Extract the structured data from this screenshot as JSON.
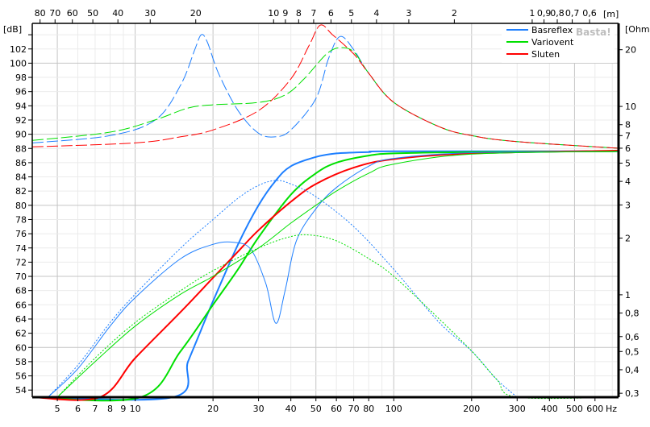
{
  "chart_data": {
    "type": "line",
    "title": "",
    "xlabel": "Hz",
    "ylabel": "[dB]",
    "y2label": "[Ohm]",
    "x2label": "[m]",
    "watermark": "Basta!",
    "xlim": [
      4,
      740
    ],
    "ylim": [
      53,
      105.6
    ],
    "y2lim": [
      0.286,
      27.6
    ],
    "xscale": "log",
    "grid": true,
    "legend_position": "top-right",
    "colors": {
      "Basreflex": "#1e7fff",
      "Variovent": "#00e000",
      "Sluten": "#ff0000"
    },
    "x_ticks": [
      "5",
      "6",
      "7",
      "8",
      "9",
      "10",
      "20",
      "30",
      "40",
      "50",
      "60",
      "70",
      "80",
      "100",
      "200",
      "300",
      "400",
      "500",
      "600"
    ],
    "x_tick_values": [
      5,
      6,
      7,
      8,
      9,
      10,
      20,
      30,
      40,
      50,
      60,
      70,
      80,
      100,
      200,
      300,
      400,
      500,
      600
    ],
    "x2_ticks": [
      "80",
      "70",
      "60",
      "50",
      "40",
      "30",
      "20",
      "10",
      "9",
      "8",
      "7",
      "6",
      "5",
      "4",
      "3",
      "2",
      "1",
      "0,9",
      "0,8",
      "0,7",
      "0,6"
    ],
    "x2_tick_values": [
      80,
      70,
      60,
      50,
      40,
      30,
      20,
      10,
      9,
      8,
      7,
      6,
      5,
      4,
      3,
      2,
      1,
      0.9,
      0.8,
      0.7,
      0.6
    ],
    "y_ticks": [
      54,
      56,
      58,
      60,
      62,
      64,
      66,
      68,
      70,
      72,
      74,
      76,
      78,
      80,
      82,
      84,
      86,
      88,
      90,
      92,
      94,
      96,
      98,
      100,
      102
    ],
    "y2_ticks": [
      "20",
      "10",
      "8",
      "7",
      "6",
      "5",
      "4",
      "3",
      "2",
      "1",
      "0,8",
      "0,6",
      "0,5",
      "0,4",
      "0,3"
    ],
    "y2_tick_values": [
      20,
      10,
      8,
      7,
      6,
      5,
      4,
      3,
      2,
      1,
      0.8,
      0.6,
      0.5,
      0.4,
      0.3
    ],
    "legend": [
      "Basreflex",
      "Variovent",
      "Sluten"
    ],
    "series": [
      {
        "name": "Basreflex",
        "kind": "spl",
        "axis": "dB",
        "style": "thick",
        "points": [
          [
            4,
            53
          ],
          [
            14,
            53
          ],
          [
            16,
            58
          ],
          [
            18,
            62.5
          ],
          [
            20,
            66.5
          ],
          [
            25,
            74.5
          ],
          [
            30,
            80
          ],
          [
            35,
            83.5
          ],
          [
            40,
            85.5
          ],
          [
            50,
            86.8
          ],
          [
            60,
            87.3
          ],
          [
            80,
            87.5
          ],
          [
            100,
            87.6
          ],
          [
            740,
            87.6
          ]
        ]
      },
      {
        "name": "Variovent",
        "kind": "spl",
        "axis": "dB",
        "style": "thick",
        "points": [
          [
            4,
            53
          ],
          [
            10.5,
            53
          ],
          [
            15,
            59.5
          ],
          [
            20,
            66
          ],
          [
            25,
            71
          ],
          [
            30,
            75.5
          ],
          [
            40,
            81.5
          ],
          [
            50,
            84.5
          ],
          [
            60,
            86
          ],
          [
            80,
            87
          ],
          [
            100,
            87.3
          ],
          [
            200,
            87.5
          ],
          [
            740,
            87.6
          ]
        ]
      },
      {
        "name": "Sluten",
        "kind": "spl",
        "axis": "dB",
        "style": "thick",
        "points": [
          [
            4,
            53
          ],
          [
            7.3,
            53
          ],
          [
            10,
            58.5
          ],
          [
            15,
            65
          ],
          [
            20,
            69.8
          ],
          [
            25,
            73.5
          ],
          [
            30,
            76.5
          ],
          [
            40,
            80.5
          ],
          [
            50,
            83
          ],
          [
            70,
            85.3
          ],
          [
            100,
            86.5
          ],
          [
            200,
            87.3
          ],
          [
            740,
            87.7
          ]
        ]
      },
      {
        "name": "Basreflex",
        "kind": "spl-thin",
        "axis": "dB",
        "style": "thin",
        "points": [
          [
            4.6,
            53
          ],
          [
            6,
            57
          ],
          [
            8,
            63
          ],
          [
            10,
            67
          ],
          [
            15,
            72.5
          ],
          [
            20,
            74.5
          ],
          [
            24,
            74.8
          ],
          [
            28,
            73.8
          ],
          [
            32,
            69
          ],
          [
            35,
            63.4
          ],
          [
            38,
            68
          ],
          [
            42,
            75
          ],
          [
            50,
            79.5
          ],
          [
            60,
            82.5
          ],
          [
            80,
            85.5
          ],
          [
            100,
            86.6
          ],
          [
            200,
            87.4
          ],
          [
            740,
            87.6
          ]
        ]
      },
      {
        "name": "Variovent",
        "kind": "spl-thin",
        "axis": "dB",
        "style": "thin",
        "points": [
          [
            5,
            53
          ],
          [
            7,
            58
          ],
          [
            10,
            63
          ],
          [
            15,
            67.5
          ],
          [
            20,
            70
          ],
          [
            30,
            74
          ],
          [
            40,
            77.5
          ],
          [
            50,
            80
          ],
          [
            60,
            82
          ],
          [
            80,
            84.5
          ],
          [
            100,
            85.8
          ],
          [
            200,
            87.2
          ],
          [
            740,
            87.6
          ]
        ]
      },
      {
        "name": "Basreflex",
        "kind": "driver",
        "axis": "dB",
        "style": "dotted",
        "points": [
          [
            4.6,
            53
          ],
          [
            6,
            57.5
          ],
          [
            8,
            63.5
          ],
          [
            10,
            67.5
          ],
          [
            15,
            74
          ],
          [
            20,
            78
          ],
          [
            25,
            81
          ],
          [
            30,
            82.8
          ],
          [
            35,
            83.5
          ],
          [
            40,
            83
          ],
          [
            50,
            81.2
          ],
          [
            70,
            77
          ],
          [
            100,
            71
          ],
          [
            150,
            63.5
          ],
          [
            200,
            59.5
          ],
          [
            250,
            55.5
          ],
          [
            300,
            53
          ]
        ]
      },
      {
        "name": "Variovent",
        "kind": "driver",
        "axis": "dB",
        "style": "dotted",
        "points": [
          [
            5,
            53
          ],
          [
            7,
            58.5
          ],
          [
            10,
            63.5
          ],
          [
            15,
            68
          ],
          [
            20,
            70.8
          ],
          [
            30,
            74
          ],
          [
            40,
            75.6
          ],
          [
            48,
            75.8
          ],
          [
            60,
            75
          ],
          [
            80,
            72.5
          ],
          [
            100,
            70
          ],
          [
            150,
            64
          ],
          [
            200,
            59.5
          ],
          [
            250,
            55.5
          ],
          [
            300,
            53
          ],
          [
            740,
            53
          ]
        ]
      },
      {
        "name": "Basreflex",
        "kind": "impedance",
        "axis": "Ohm",
        "style": "dashed",
        "points": [
          [
            4,
            6.4
          ],
          [
            8,
            7
          ],
          [
            12,
            8.5
          ],
          [
            15,
            13
          ],
          [
            17,
            20
          ],
          [
            18,
            24
          ],
          [
            19,
            22
          ],
          [
            21,
            15
          ],
          [
            25,
            9.5
          ],
          [
            30,
            7.2
          ],
          [
            35,
            6.9
          ],
          [
            40,
            7.5
          ],
          [
            50,
            11
          ],
          [
            56,
            18
          ],
          [
            62,
            23.5
          ],
          [
            70,
            20
          ],
          [
            80,
            15
          ],
          [
            100,
            10.5
          ],
          [
            150,
            7.8
          ],
          [
            200,
            7
          ],
          [
            300,
            6.5
          ],
          [
            740,
            6
          ]
        ]
      },
      {
        "name": "Variovent",
        "kind": "impedance",
        "axis": "Ohm",
        "style": "dashed",
        "points": [
          [
            4,
            6.6
          ],
          [
            8,
            7.3
          ],
          [
            12,
            8.5
          ],
          [
            16,
            9.8
          ],
          [
            20,
            10.2
          ],
          [
            30,
            10.5
          ],
          [
            38,
            11.5
          ],
          [
            45,
            14
          ],
          [
            55,
            19
          ],
          [
            62,
            20.5
          ],
          [
            70,
            19.5
          ],
          [
            80,
            15
          ],
          [
            100,
            10.5
          ],
          [
            150,
            7.8
          ],
          [
            200,
            7
          ],
          [
            300,
            6.5
          ],
          [
            740,
            6
          ]
        ]
      },
      {
        "name": "Sluten",
        "kind": "impedance",
        "axis": "Ohm",
        "style": "dashed",
        "points": [
          [
            4,
            6.1
          ],
          [
            10,
            6.4
          ],
          [
            15,
            6.9
          ],
          [
            20,
            7.5
          ],
          [
            30,
            9.5
          ],
          [
            40,
            14
          ],
          [
            47,
            21
          ],
          [
            52,
            27
          ],
          [
            58,
            24
          ],
          [
            70,
            19
          ],
          [
            80,
            15
          ],
          [
            100,
            10.5
          ],
          [
            150,
            7.8
          ],
          [
            200,
            7
          ],
          [
            300,
            6.5
          ],
          [
            740,
            6
          ]
        ]
      }
    ]
  }
}
